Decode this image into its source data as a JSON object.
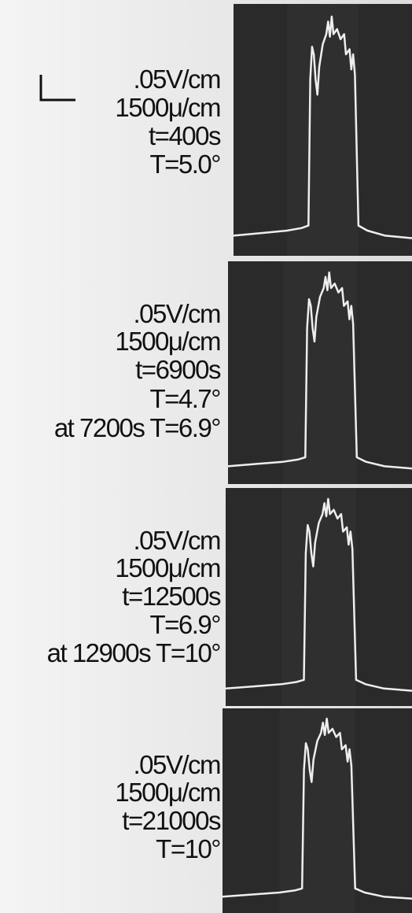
{
  "panels": [
    {
      "lines": [
        ".05V/cm",
        "1500μ/cm",
        "t=400s",
        "T=5.0°"
      ]
    },
    {
      "lines": [
        ".05V/cm",
        "1500μ/cm",
        "t=6900s",
        "T=4.7°",
        "at 7200s T=6.9°"
      ]
    },
    {
      "lines": [
        ".05V/cm",
        "1500μ/cm",
        "t=12500s",
        "T=6.9°",
        "at 12900s T=10°"
      ]
    },
    {
      "lines": [
        ".05V/cm",
        "1500μ/cm",
        "t=21000s",
        "T=10°"
      ]
    }
  ]
}
